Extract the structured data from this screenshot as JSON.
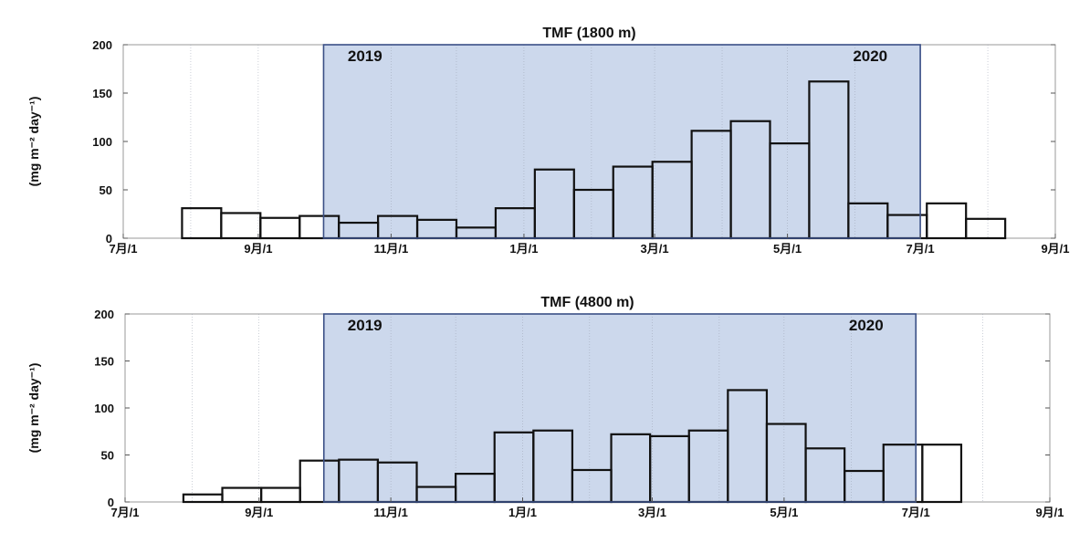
{
  "chart_data": [
    {
      "type": "bar",
      "title": "TMF (1800 m)",
      "ylabel": "(mg m⁻² day⁻¹)",
      "ylim": [
        0,
        200
      ],
      "yticks": [
        0,
        50,
        100,
        150,
        200
      ],
      "xlim": [
        "2019-07-01",
        "2020-09-01"
      ],
      "xtick_labels": [
        "7月/1",
        "9月/1",
        "11月/1",
        "1月/1",
        "3月/1",
        "5月/1",
        "7月/1",
        "9月/1"
      ],
      "xtick_dates": [
        "2019-07-01",
        "2019-09-01",
        "2019-11-01",
        "2020-01-01",
        "2020-03-01",
        "2020-05-01",
        "2020-07-01",
        "2020-09-01"
      ],
      "grid_dates": [
        "2019-08-01",
        "2019-09-01",
        "2019-10-01",
        "2019-11-01",
        "2019-12-01",
        "2020-01-01",
        "2020-02-01",
        "2020-03-01",
        "2020-04-01",
        "2020-05-01",
        "2020-06-01",
        "2020-07-01",
        "2020-08-01"
      ],
      "highlight": {
        "start": "2019-10-01",
        "end": "2020-07-01",
        "color": "#ccd8ec",
        "border": "#3a4f86"
      },
      "year_labels": [
        {
          "text": "2019",
          "date": "2019-10-20"
        },
        {
          "text": "2020",
          "date": "2020-06-08"
        }
      ],
      "bins": [
        {
          "start": "2019-07-28",
          "end": "2019-08-15",
          "value": 31
        },
        {
          "start": "2019-08-15",
          "end": "2019-09-02",
          "value": 26
        },
        {
          "start": "2019-09-02",
          "end": "2019-09-20",
          "value": 21
        },
        {
          "start": "2019-09-20",
          "end": "2019-10-08",
          "value": 23
        },
        {
          "start": "2019-10-08",
          "end": "2019-10-26",
          "value": 16
        },
        {
          "start": "2019-10-26",
          "end": "2019-11-13",
          "value": 23
        },
        {
          "start": "2019-11-13",
          "end": "2019-12-01",
          "value": 19
        },
        {
          "start": "2019-12-01",
          "end": "2019-12-19",
          "value": 11
        },
        {
          "start": "2019-12-19",
          "end": "2020-01-06",
          "value": 31
        },
        {
          "start": "2020-01-06",
          "end": "2020-01-24",
          "value": 71
        },
        {
          "start": "2020-01-24",
          "end": "2020-02-11",
          "value": 50
        },
        {
          "start": "2020-02-11",
          "end": "2020-02-29",
          "value": 74
        },
        {
          "start": "2020-02-29",
          "end": "2020-03-18",
          "value": 79
        },
        {
          "start": "2020-03-18",
          "end": "2020-04-05",
          "value": 111
        },
        {
          "start": "2020-04-05",
          "end": "2020-04-23",
          "value": 121
        },
        {
          "start": "2020-04-23",
          "end": "2020-05-11",
          "value": 98
        },
        {
          "start": "2020-05-11",
          "end": "2020-05-29",
          "value": 162
        },
        {
          "start": "2020-05-29",
          "end": "2020-06-16",
          "value": 36
        },
        {
          "start": "2020-06-16",
          "end": "2020-07-04",
          "value": 24
        },
        {
          "start": "2020-07-04",
          "end": "2020-07-22",
          "value": 36
        },
        {
          "start": "2020-07-22",
          "end": "2020-08-09",
          "value": 20
        }
      ]
    },
    {
      "type": "bar",
      "title": "TMF (4800 m)",
      "ylabel": "(mg m⁻² day⁻¹)",
      "ylim": [
        0,
        200
      ],
      "yticks": [
        0,
        50,
        100,
        150,
        200
      ],
      "xlim": [
        "2019-07-01",
        "2020-09-01"
      ],
      "xtick_labels": [
        "7月/1",
        "9月/1",
        "11月/1",
        "1月/1",
        "3月/1",
        "5月/1",
        "7月/1",
        "9月/1"
      ],
      "xtick_dates": [
        "2019-07-01",
        "2019-09-01",
        "2019-11-01",
        "2020-01-01",
        "2020-03-01",
        "2020-05-01",
        "2020-07-01",
        "2020-09-01"
      ],
      "grid_dates": [
        "2019-08-01",
        "2019-09-01",
        "2019-10-01",
        "2019-11-01",
        "2019-12-01",
        "2020-01-01",
        "2020-02-01",
        "2020-03-01",
        "2020-04-01",
        "2020-05-01",
        "2020-06-01",
        "2020-07-01",
        "2020-08-01"
      ],
      "highlight": {
        "start": "2019-10-01",
        "end": "2020-07-01",
        "color": "#ccd8ec",
        "border": "#3a4f86"
      },
      "year_labels": [
        {
          "text": "2019",
          "date": "2019-10-20"
        },
        {
          "text": "2020",
          "date": "2020-06-08"
        }
      ],
      "bins": [
        {
          "start": "2019-07-28",
          "end": "2019-08-15",
          "value": 8
        },
        {
          "start": "2019-08-15",
          "end": "2019-09-02",
          "value": 15
        },
        {
          "start": "2019-09-02",
          "end": "2019-09-20",
          "value": 15
        },
        {
          "start": "2019-09-20",
          "end": "2019-10-08",
          "value": 44
        },
        {
          "start": "2019-10-08",
          "end": "2019-10-26",
          "value": 45
        },
        {
          "start": "2019-10-26",
          "end": "2019-11-13",
          "value": 42
        },
        {
          "start": "2019-11-13",
          "end": "2019-12-01",
          "value": 16
        },
        {
          "start": "2019-12-01",
          "end": "2019-12-19",
          "value": 30
        },
        {
          "start": "2019-12-19",
          "end": "2020-01-06",
          "value": 74
        },
        {
          "start": "2020-01-06",
          "end": "2020-01-24",
          "value": 76
        },
        {
          "start": "2020-01-24",
          "end": "2020-02-11",
          "value": 34
        },
        {
          "start": "2020-02-11",
          "end": "2020-02-29",
          "value": 72
        },
        {
          "start": "2020-02-29",
          "end": "2020-03-18",
          "value": 70
        },
        {
          "start": "2020-03-18",
          "end": "2020-04-05",
          "value": 76
        },
        {
          "start": "2020-04-05",
          "end": "2020-04-23",
          "value": 119
        },
        {
          "start": "2020-04-23",
          "end": "2020-05-11",
          "value": 83
        },
        {
          "start": "2020-05-11",
          "end": "2020-05-29",
          "value": 57
        },
        {
          "start": "2020-05-29",
          "end": "2020-06-16",
          "value": 33
        },
        {
          "start": "2020-06-16",
          "end": "2020-07-04",
          "value": 61
        },
        {
          "start": "2020-07-04",
          "end": "2020-07-22",
          "value": 61
        }
      ]
    }
  ]
}
